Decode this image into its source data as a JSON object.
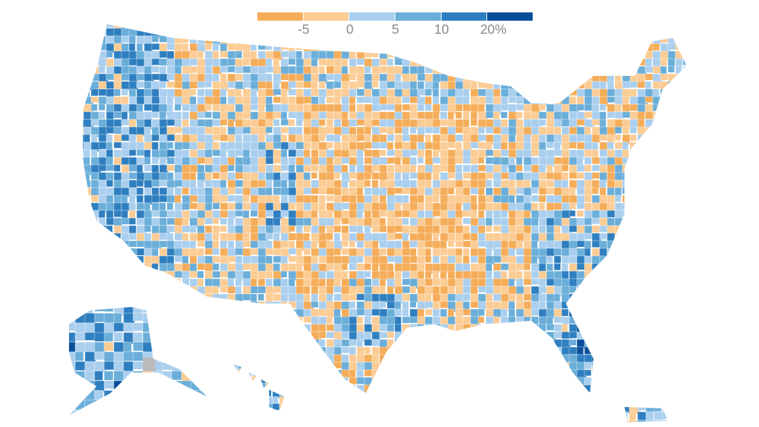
{
  "legend": {
    "bins": [
      {
        "color": "#f5ad5a"
      },
      {
        "color": "#fbcc94"
      },
      {
        "color": "#aacfee"
      },
      {
        "color": "#6aaed9"
      },
      {
        "color": "#2f7fc0"
      },
      {
        "color": "#094e9a"
      }
    ],
    "labels": [
      "-5",
      "0",
      "5",
      "10",
      "20%"
    ]
  },
  "no_data_color": "#bbbbbb",
  "border_color": "#ffffff"
}
